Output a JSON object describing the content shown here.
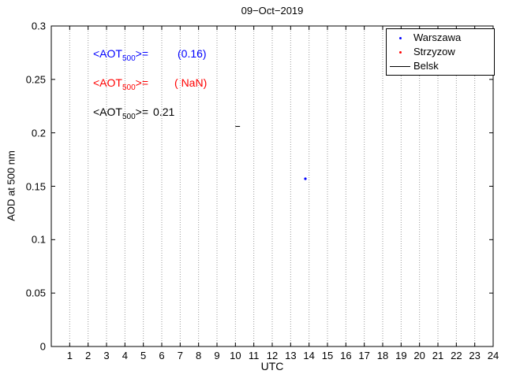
{
  "chart_data": {
    "type": "scatter",
    "title": "09−Oct−2019",
    "xlabel": "UTC",
    "ylabel": "AOD at 500 nm",
    "xlim": [
      0,
      24
    ],
    "ylim": [
      0,
      0.3
    ],
    "x_ticks": [
      1,
      2,
      3,
      4,
      5,
      6,
      7,
      8,
      9,
      10,
      11,
      12,
      13,
      14,
      15,
      16,
      17,
      18,
      19,
      20,
      21,
      22,
      23,
      24
    ],
    "y_ticks": [
      0,
      0.05,
      0.1,
      0.15,
      0.2,
      0.25,
      0.3
    ],
    "y_tick_labels": [
      "0",
      "0.05",
      "0.1",
      "0.15",
      "0.2",
      "0.25",
      "0.3"
    ],
    "grid": "vertical-dotted",
    "legend_position": "top-right",
    "series": [
      {
        "name": "Warszawa",
        "type": "scatter",
        "marker": "dot",
        "color": "#0000ff",
        "points": [
          [
            13.8,
            0.157
          ]
        ]
      },
      {
        "name": "Strzyzow",
        "type": "scatter",
        "marker": "dot",
        "color": "#ff0000",
        "points": []
      },
      {
        "name": "Belsk",
        "type": "line",
        "color": "#000000",
        "points": [
          [
            10.0,
            0.206
          ],
          [
            10.25,
            0.206
          ]
        ]
      }
    ],
    "annotations": [
      {
        "prefix": "<AOT",
        "sub": "500",
        "suffix": ">=",
        "value": "(0.16)",
        "color": "#0000ff"
      },
      {
        "prefix": "<AOT",
        "sub": "500",
        "suffix": ">=",
        "value": "( NaN)",
        "color": "#ff0000"
      },
      {
        "prefix": "<AOT",
        "sub": "500",
        "suffix": ">=",
        "value": "0.21",
        "color": "#000000"
      }
    ]
  },
  "legend": {
    "items": [
      {
        "label": "Warszawa",
        "color": "#0000ff",
        "marker": "dot"
      },
      {
        "label": "Strzyzow",
        "color": "#ff0000",
        "marker": "dot"
      },
      {
        "label": "Belsk",
        "color": "#000000",
        "marker": "line"
      }
    ]
  }
}
